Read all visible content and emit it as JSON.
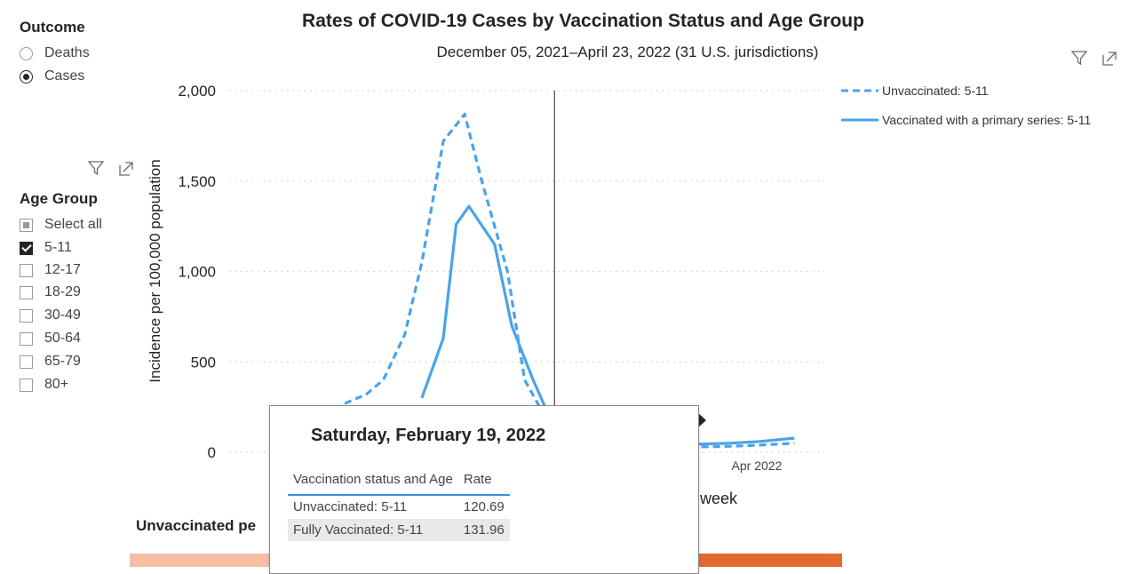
{
  "outcome": {
    "title": "Outcome",
    "options": [
      {
        "label": "Deaths",
        "selected": false
      },
      {
        "label": "Cases",
        "selected": true
      }
    ]
  },
  "age_group": {
    "title": "Age Group",
    "select_all": "Select all",
    "options": [
      {
        "label": "5-11",
        "checked": true
      },
      {
        "label": "12-17",
        "checked": false
      },
      {
        "label": "18-29",
        "checked": false
      },
      {
        "label": "30-49",
        "checked": false
      },
      {
        "label": "50-64",
        "checked": false
      },
      {
        "label": "65-79",
        "checked": false
      },
      {
        "label": "80+",
        "checked": false
      }
    ]
  },
  "icons": {
    "filter": "filter-icon",
    "focus": "focus-mode-icon"
  },
  "bottom_visual": {
    "title": "Unvaccinated pe",
    "colors": {
      "left": "#f4bfa5",
      "right": "#e26a32"
    }
  },
  "tooltip": {
    "date": "Saturday, February 19, 2022",
    "headers": [
      "Vaccination status and Age",
      "Rate"
    ],
    "rows": [
      {
        "label": "Unvaccinated: 5-11",
        "value": "120.69"
      },
      {
        "label": "Fully Vaccinated: 5-11",
        "value": "131.96"
      }
    ]
  },
  "chart_data": {
    "type": "line",
    "title": "Rates of COVID-19 Cases by Vaccination Status and Age Group",
    "subtitle": "December 05, 2021–April 23, 2022 (31 U.S. jurisdictions)",
    "ylabel": "Incidence per 100,000 population",
    "xlabel_visible": "f week",
    "ylim": [
      0,
      2000
    ],
    "yticks": [
      0,
      500,
      1000,
      1500,
      2000
    ],
    "ytick_labels": [
      "0",
      "500",
      "1,000",
      "1,500",
      "2,000"
    ],
    "x_tick_labels": [
      {
        "date": "2022-04-01",
        "label": "Apr 2022"
      }
    ],
    "xlim": [
      "2021-12-05",
      "2022-04-23"
    ],
    "hover_date": "2022-02-19",
    "grid": true,
    "legend_position": "right",
    "colors": {
      "line": "#4aa3ea",
      "hover": "#555555",
      "grid": "#d0d0d0"
    },
    "series": [
      {
        "name": "Unvaccinated: 5-11",
        "style": "dashed",
        "points": [
          [
            "2022-01-01",
            270
          ],
          [
            "2022-01-06",
            320
          ],
          [
            "2022-01-10",
            400
          ],
          [
            "2022-01-15",
            650
          ],
          [
            "2022-01-19",
            1050
          ],
          [
            "2022-01-24",
            1720
          ],
          [
            "2022-01-29",
            1870
          ],
          [
            "2022-02-02",
            1500
          ],
          [
            "2022-02-08",
            1000
          ],
          [
            "2022-02-12",
            400
          ],
          [
            "2022-02-16",
            230
          ],
          [
            "2022-02-19",
            121
          ],
          [
            "2022-02-25",
            60
          ],
          [
            "2022-03-04",
            45
          ],
          [
            "2022-03-11",
            30
          ],
          [
            "2022-03-18",
            25
          ],
          [
            "2022-03-25",
            30
          ],
          [
            "2022-04-01",
            33
          ],
          [
            "2022-04-08",
            40
          ],
          [
            "2022-04-16",
            50
          ]
        ]
      },
      {
        "name": "Vaccinated with a primary series: 5-11",
        "style": "solid",
        "points": [
          [
            "2022-01-19",
            300
          ],
          [
            "2022-01-24",
            630
          ],
          [
            "2022-01-27",
            1260
          ],
          [
            "2022-01-30",
            1360
          ],
          [
            "2022-02-05",
            1150
          ],
          [
            "2022-02-09",
            700
          ],
          [
            "2022-02-14",
            400
          ],
          [
            "2022-02-19",
            132
          ],
          [
            "2022-02-25",
            70
          ],
          [
            "2022-03-04",
            55
          ],
          [
            "2022-03-11",
            45
          ],
          [
            "2022-03-18",
            40
          ],
          [
            "2022-03-25",
            45
          ],
          [
            "2022-04-01",
            50
          ],
          [
            "2022-04-08",
            60
          ],
          [
            "2022-04-16",
            78
          ]
        ]
      }
    ]
  }
}
